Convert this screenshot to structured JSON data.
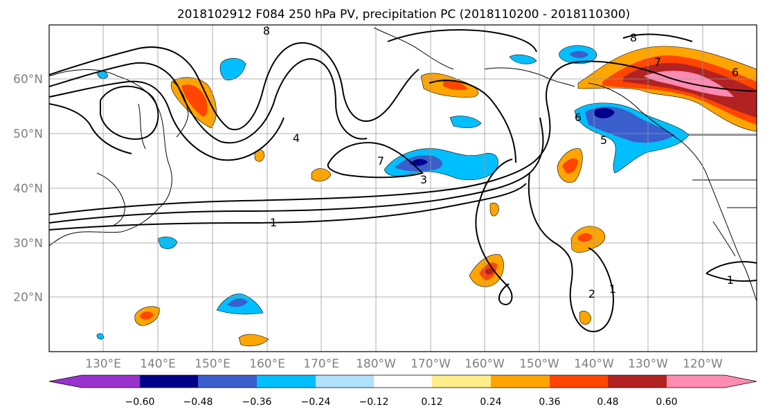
{
  "map": {
    "title": "2018102912 F084 250 hPa PV, precipitation PC (2018110200 - 2018110300)",
    "lon_ticks": [
      "130°E",
      "140°E",
      "150°E",
      "160°E",
      "170°E",
      "180°W",
      "170°W",
      "160°W",
      "150°W",
      "140°W",
      "130°W",
      "120°W"
    ],
    "lat_ticks": [
      "60°N",
      "50°N",
      "40°N",
      "30°N",
      "20°N"
    ],
    "contour_labels": [
      "1",
      "2",
      "3",
      "4",
      "5",
      "6",
      "7",
      "8"
    ],
    "colors": {
      "neg_0": "#9932cc",
      "neg_1": "#00008b",
      "neg_2": "#3a5fcd",
      "neg_3": "#00bfff",
      "neg_4": "#b0e2ff",
      "zero": "#ffffff",
      "pos_1": "#ffec8b",
      "pos_2": "#ffa500",
      "pos_3": "#ff4500",
      "pos_4": "#b22222",
      "pos_5": "#ff8ab2"
    }
  },
  "colorbar": {
    "ticks": [
      "−0.60",
      "−0.48",
      "−0.36",
      "−0.24",
      "−0.12",
      "0.12",
      "0.24",
      "0.36",
      "0.48",
      "0.60"
    ],
    "levels": [
      -0.6,
      -0.48,
      -0.36,
      -0.24,
      -0.12,
      0.12,
      0.24,
      0.36,
      0.48,
      0.6
    ]
  }
}
